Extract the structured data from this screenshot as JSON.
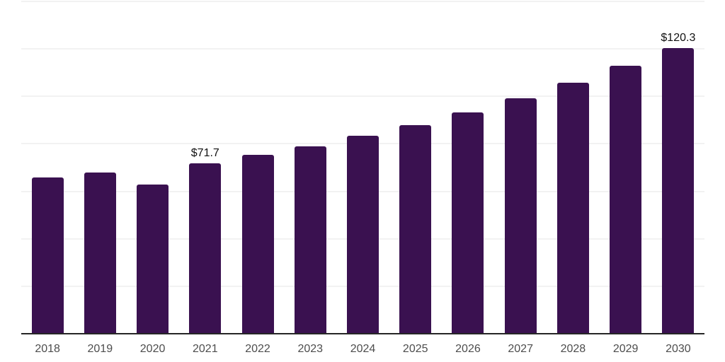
{
  "chart_data": {
    "type": "bar",
    "title": "",
    "xlabel": "",
    "ylabel": "",
    "categories": [
      "2018",
      "2019",
      "2020",
      "2021",
      "2022",
      "2023",
      "2024",
      "2025",
      "2026",
      "2027",
      "2028",
      "2029",
      "2030"
    ],
    "values": [
      65.8,
      67.9,
      62.8,
      71.7,
      75.3,
      78.9,
      83.4,
      87.8,
      93.2,
      99.3,
      105.7,
      112.9,
      120.3
    ],
    "ylim": [
      0,
      140
    ],
    "grid_step": 20,
    "grid": true,
    "legend_visible": false,
    "y_axis_labels_visible": false,
    "data_labels": [
      {
        "category": "2021",
        "text": "$71.7"
      },
      {
        "category": "2030",
        "text": "$120.3"
      }
    ],
    "colors": {
      "bar": "#3A1150",
      "grid_line": "#F2F2F2",
      "axis_line": "#262626",
      "tick_label": "#4D4D4D",
      "data_label": "#111111",
      "background": "#FFFFFF"
    }
  }
}
